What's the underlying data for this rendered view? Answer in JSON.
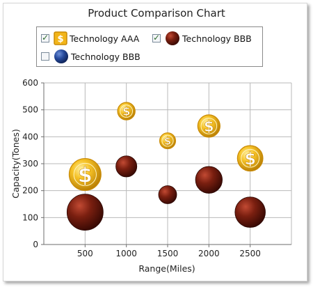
{
  "chart_data": {
    "type": "bubble",
    "title": "Product Comparison Chart",
    "xlabel": "Range(Miles)",
    "ylabel": "Capacity(Tones)",
    "xlim": [
      0,
      3000
    ],
    "ylim": [
      0,
      600
    ],
    "x_ticks": [
      "500",
      "1000",
      "1500",
      "2000",
      "2500"
    ],
    "y_ticks": [
      "0",
      "100",
      "200",
      "300",
      "400",
      "500",
      "600"
    ],
    "grid": true,
    "legend_position": "top",
    "series": [
      {
        "name": "Technology AAA",
        "marker": "gold-coin",
        "visible": true,
        "points": [
          {
            "x": 500,
            "y": 260,
            "size": 1.0
          },
          {
            "x": 1000,
            "y": 495,
            "size": 0.55
          },
          {
            "x": 1500,
            "y": 385,
            "size": 0.5
          },
          {
            "x": 2000,
            "y": 440,
            "size": 0.7
          },
          {
            "x": 2500,
            "y": 320,
            "size": 0.8
          }
        ]
      },
      {
        "name": "Technology BBB",
        "marker": "dark-red-sphere",
        "color": "#6b1a0e",
        "visible": true,
        "points": [
          {
            "x": 500,
            "y": 120,
            "size": 1.0
          },
          {
            "x": 1000,
            "y": 290,
            "size": 0.58
          },
          {
            "x": 1500,
            "y": 185,
            "size": 0.5
          },
          {
            "x": 2000,
            "y": 240,
            "size": 0.74
          },
          {
            "x": 2500,
            "y": 120,
            "size": 0.84
          }
        ]
      },
      {
        "name": "Technology BBB",
        "marker": "blue-sphere",
        "color": "#1f3f8c",
        "visible": false,
        "points": []
      }
    ]
  },
  "legend": {
    "items": [
      {
        "label": "Technology AAA",
        "checked": true,
        "icon": "gold-coin-icon"
      },
      {
        "label": "Technology BBB",
        "checked": true,
        "icon": "red-sphere-icon"
      },
      {
        "label": "Technology BBB",
        "checked": false,
        "icon": "blue-sphere-icon"
      }
    ]
  },
  "colors": {
    "grid": "#b9b9b9",
    "axis": "#6e6e6e",
    "coin_gold": "#f2b51a",
    "coin_rim": "#c98a05",
    "red_sphere": "#6b1a0e",
    "blue_sphere": "#1f3f8c"
  }
}
